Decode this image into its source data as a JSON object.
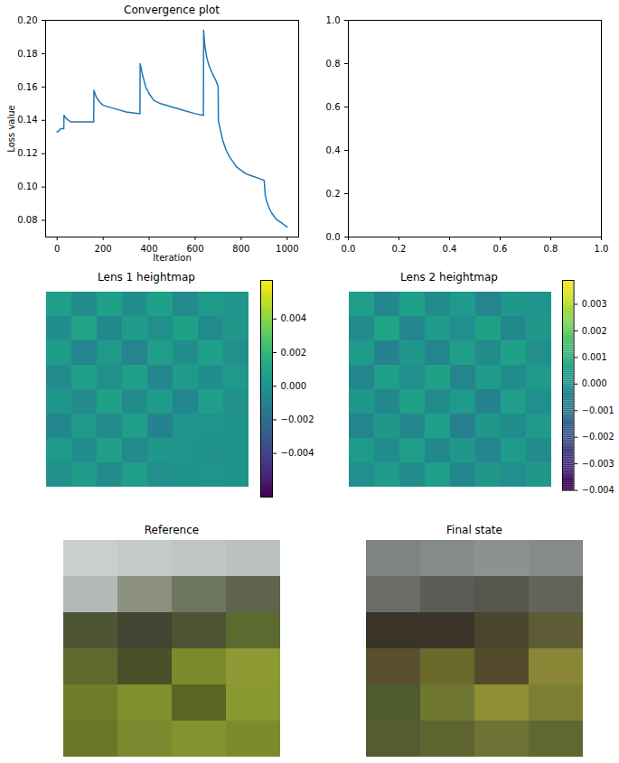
{
  "chart_data": [
    {
      "type": "line",
      "title": "Convergence plot",
      "x_label": "Iteration",
      "y_label": "Loss value",
      "color": "#1f77b4",
      "x": [
        0,
        10,
        14,
        20,
        29,
        30,
        40,
        50,
        60,
        100,
        159,
        160,
        170,
        185,
        200,
        250,
        300,
        360,
        361,
        370,
        385,
        400,
        420,
        450,
        500,
        550,
        600,
        636,
        637,
        642,
        650,
        660,
        675,
        690,
        700,
        701,
        710,
        720,
        735,
        750,
        765,
        780,
        800,
        820,
        840,
        860,
        880,
        900,
        905,
        910,
        920,
        930,
        940,
        950,
        960,
        970,
        980,
        990,
        1000
      ],
      "values": [
        0.133,
        0.134,
        0.135,
        0.135,
        0.135,
        0.143,
        0.141,
        0.14,
        0.139,
        0.139,
        0.139,
        0.158,
        0.154,
        0.151,
        0.149,
        0.147,
        0.145,
        0.144,
        0.174,
        0.168,
        0.16,
        0.156,
        0.152,
        0.15,
        0.148,
        0.146,
        0.144,
        0.143,
        0.194,
        0.185,
        0.178,
        0.173,
        0.168,
        0.164,
        0.16,
        0.14,
        0.134,
        0.128,
        0.122,
        0.118,
        0.115,
        0.112,
        0.11,
        0.108,
        0.107,
        0.106,
        0.105,
        0.104,
        0.095,
        0.092,
        0.088,
        0.085,
        0.083,
        0.081,
        0.08,
        0.079,
        0.078,
        0.077,
        0.076
      ],
      "xlim": [
        -50,
        1050
      ],
      "ylim": [
        0.07,
        0.2
      ],
      "xticks": [
        0,
        200,
        400,
        600,
        800,
        1000
      ],
      "yticks": [
        0.08,
        {
          "value": 0.1,
          "label": "0.10"
        },
        0.12,
        0.14,
        0.16,
        0.18,
        {
          "value": 0.2,
          "label": "0.20"
        }
      ]
    },
    {
      "type": "empty",
      "xlim": [
        0,
        1
      ],
      "ylim": [
        0,
        1
      ],
      "xticks": [
        {
          "value": 0,
          "label": "0.0"
        },
        {
          "value": 0.2,
          "label": "0.2"
        },
        {
          "value": 0.4,
          "label": "0.4"
        },
        {
          "value": 0.6,
          "label": "0.6"
        },
        {
          "value": 0.8,
          "label": "0.8"
        },
        {
          "value": 1,
          "label": "1.0"
        }
      ],
      "yticks": [
        {
          "value": 0,
          "label": "0.0"
        },
        {
          "value": 0.2,
          "label": "0.2"
        },
        {
          "value": 0.4,
          "label": "0.4"
        },
        {
          "value": 0.6,
          "label": "0.6"
        },
        {
          "value": 0.8,
          "label": "0.8"
        },
        {
          "value": 1,
          "label": "1.0"
        }
      ]
    },
    {
      "type": "heatmap",
      "title": "Lens 1 heightmap",
      "color": "viridis",
      "tick_labels": false,
      "cells": [
        [
          0.0006,
          -0.0004,
          0.0008,
          -0.0003,
          0.0007,
          -0.0005,
          0.0004,
          0.0002
        ],
        [
          -0.0003,
          0.0009,
          -0.0006,
          0.0005,
          -0.0002,
          0.0008,
          -0.0004,
          0.0003
        ],
        [
          0.0005,
          -0.0007,
          0.0004,
          -0.0008,
          0.0006,
          -0.0003,
          0.0007,
          -0.0002
        ],
        [
          -0.0004,
          0.0006,
          -0.0002,
          0.0007,
          -0.0006,
          0.0005,
          -0.0003,
          0.0004
        ],
        [
          0.0003,
          -0.0005,
          0.0008,
          -0.0004,
          0.0005,
          -0.0007,
          0.0006,
          -0.0001
        ],
        [
          -0.0006,
          0.0004,
          -0.0005,
          0.0006,
          -0.0009,
          0.0002,
          0.0001,
          0.0
        ],
        [
          0.0004,
          -0.0003,
          0.0007,
          -0.0005,
          0.0003,
          0.0001,
          -0.0001,
          0.0
        ],
        [
          -0.0002,
          0.0005,
          -0.0004,
          0.0006,
          -0.0002,
          0.0,
          0.0001,
          0.0
        ]
      ],
      "colorbar": {
        "range": [
          -0.0066,
          0.0063
        ],
        "ticks": [
          {
            "value": -0.004,
            "label": "−0.004"
          },
          {
            "value": -0.002,
            "label": "−0.002"
          },
          {
            "value": 0,
            "label": "0.000"
          },
          0.002,
          0.004
        ]
      }
    },
    {
      "type": "heatmap",
      "title": "Lens 2 heightmap",
      "color": "viridis",
      "tick_labels": false,
      "cells": [
        [
          0.0004,
          -0.0003,
          0.0005,
          -0.0002,
          0.0003,
          -0.0004,
          0.0002,
          0.0001
        ],
        [
          -0.0002,
          0.0006,
          -0.0004,
          0.0003,
          -0.0001,
          0.0005,
          -0.0003,
          0.0002
        ],
        [
          0.0003,
          -0.0005,
          0.0002,
          -0.0004,
          0.0004,
          -0.0002,
          0.0005,
          -0.0001
        ],
        [
          -0.0003,
          0.0004,
          -0.0001,
          0.0005,
          -0.0004,
          0.0003,
          -0.0002,
          0.0003
        ],
        [
          0.0002,
          -0.0003,
          0.0005,
          -0.0002,
          0.0003,
          -0.0005,
          0.0004,
          -0.0001
        ],
        [
          -0.0004,
          0.0002,
          -0.0003,
          0.0004,
          -0.0006,
          0.0002,
          -0.0002,
          0.0003
        ],
        [
          0.0003,
          -0.0002,
          0.0004,
          -0.0003,
          0.0002,
          -0.0004,
          0.0003,
          -0.0002
        ],
        [
          -0.0001,
          0.0003,
          -0.0002,
          0.0004,
          -0.0003,
          0.0002,
          -0.0001,
          0.0002
        ]
      ],
      "colorbar": {
        "range": [
          -0.004,
          0.0039
        ],
        "ticks": [
          {
            "value": -0.004,
            "label": "−0.004"
          },
          {
            "value": -0.003,
            "label": "−0.003"
          },
          {
            "value": -0.002,
            "label": "−0.002"
          },
          {
            "value": -0.001,
            "label": "−0.001"
          },
          {
            "value": 0,
            "label": "0.000"
          },
          0.001,
          0.002,
          0.003
        ]
      }
    },
    {
      "type": "image",
      "title": "Reference",
      "tick_labels": false,
      "pixels": [
        [
          "#c9cfcb",
          "#c4cac6",
          "#bfc5c2",
          "#bac1be"
        ],
        [
          "#b3bab6",
          "#8c9081",
          "#6f7660",
          "#5e654c"
        ],
        [
          "#4d5534",
          "#3f4530",
          "#4c5433",
          "#5b6a2e"
        ],
        [
          "#5d6a2c",
          "#4b5029",
          "#7a8b2c",
          "#8d9a33"
        ],
        [
          "#6f7d2a",
          "#7f8f2e",
          "#5a6524",
          "#8a9832"
        ],
        [
          "#6a7628",
          "#7a8a2e",
          "#84922f",
          "#7c8b2c"
        ]
      ]
    },
    {
      "type": "image",
      "title": "Final state",
      "tick_labels": false,
      "pixels": [
        [
          "#7e8482",
          "#868b89",
          "#8d918f",
          "#868b88"
        ],
        [
          "#6b6e68",
          "#5b5c55",
          "#56564e",
          "#626459"
        ],
        [
          "#3a3327",
          "#3c3428",
          "#4a4630",
          "#5d5c36"
        ],
        [
          "#5a5030",
          "#6b6a2c",
          "#524a2a",
          "#8a8636"
        ],
        [
          "#4f5a2f",
          "#6f762f",
          "#8f8f35",
          "#7b7f34"
        ],
        [
          "#545c30",
          "#5e6531",
          "#6c7334",
          "#60682f"
        ]
      ]
    }
  ]
}
